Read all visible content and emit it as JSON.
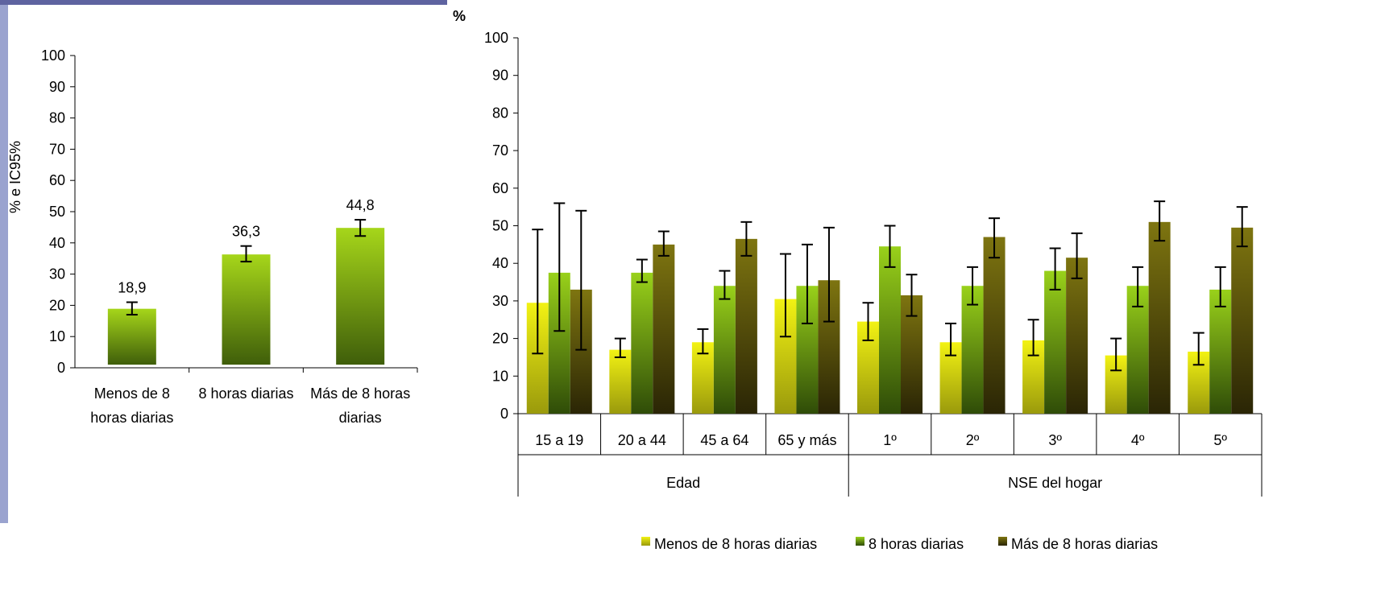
{
  "chart_data": [
    {
      "type": "bar",
      "ylabel": "% e IC95%",
      "ylim": [
        0,
        100
      ],
      "yticks": [
        0,
        10,
        20,
        30,
        40,
        50,
        60,
        70,
        80,
        90,
        100
      ],
      "categories": [
        [
          "Menos de 8",
          "horas diarias"
        ],
        [
          "8 horas diarias"
        ],
        [
          "Más de 8 horas",
          "diarias"
        ]
      ],
      "values": [
        18.9,
        36.3,
        44.8
      ],
      "data_labels": [
        "18,9",
        "36,3",
        "44,8"
      ],
      "error_low": [
        17.0,
        34.0,
        42.2
      ],
      "error_high": [
        21.0,
        39.0,
        47.4
      ],
      "grid": false,
      "colors": {
        "top": "#a6d61a",
        "bottom": "#3f5e0a"
      }
    },
    {
      "type": "bar",
      "ylabel": "%",
      "ylim": [
        0,
        100
      ],
      "yticks": [
        0,
        10,
        20,
        30,
        40,
        50,
        60,
        70,
        80,
        90,
        100
      ],
      "categories": [
        "15 a 19",
        "20 a 44",
        "45 a 64",
        "65 y más",
        "1º",
        "2º",
        "3º",
        "4º",
        "5º"
      ],
      "groups": [
        {
          "label": "Edad",
          "span": 4
        },
        {
          "label": "NSE del hogar",
          "span": 5
        }
      ],
      "series": [
        {
          "name": "Menos de 8 horas diarias",
          "values": [
            29.5,
            17.0,
            19.0,
            30.5,
            24.5,
            19.0,
            19.5,
            15.5,
            16.5
          ],
          "error_low": [
            16.0,
            15.0,
            16.0,
            20.5,
            19.5,
            15.5,
            15.5,
            11.5,
            13.0
          ],
          "error_high": [
            49.0,
            20.0,
            22.5,
            42.5,
            29.5,
            24.0,
            25.0,
            20.0,
            21.5
          ],
          "colors": {
            "top": "#f2f213",
            "bottom": "#9a9a0c"
          }
        },
        {
          "name": "8 horas diarias",
          "values": [
            37.5,
            37.5,
            34.0,
            34.0,
            44.5,
            34.0,
            38.0,
            34.0,
            33.0
          ],
          "error_low": [
            22.0,
            35.0,
            30.5,
            24.0,
            39.0,
            29.0,
            33.0,
            28.5,
            28.5
          ],
          "error_high": [
            56.0,
            41.0,
            38.0,
            45.0,
            50.0,
            39.0,
            44.0,
            39.0,
            39.0
          ],
          "colors": {
            "top": "#99d11a",
            "bottom": "#2f4c08"
          }
        },
        {
          "name": "Más de 8 horas diarias",
          "values": [
            33.0,
            45.0,
            46.5,
            35.5,
            31.5,
            47.0,
            41.5,
            51.0,
            49.5
          ],
          "error_low": [
            17.0,
            42.0,
            42.0,
            24.5,
            26.0,
            41.5,
            36.0,
            46.0,
            44.5
          ],
          "error_high": [
            54.0,
            48.5,
            51.0,
            49.5,
            37.0,
            52.0,
            48.0,
            56.5,
            55.0
          ],
          "colors": {
            "top": "#7e7510",
            "bottom": "#2a2505"
          }
        }
      ],
      "legend": "bottom",
      "grid": false
    }
  ]
}
